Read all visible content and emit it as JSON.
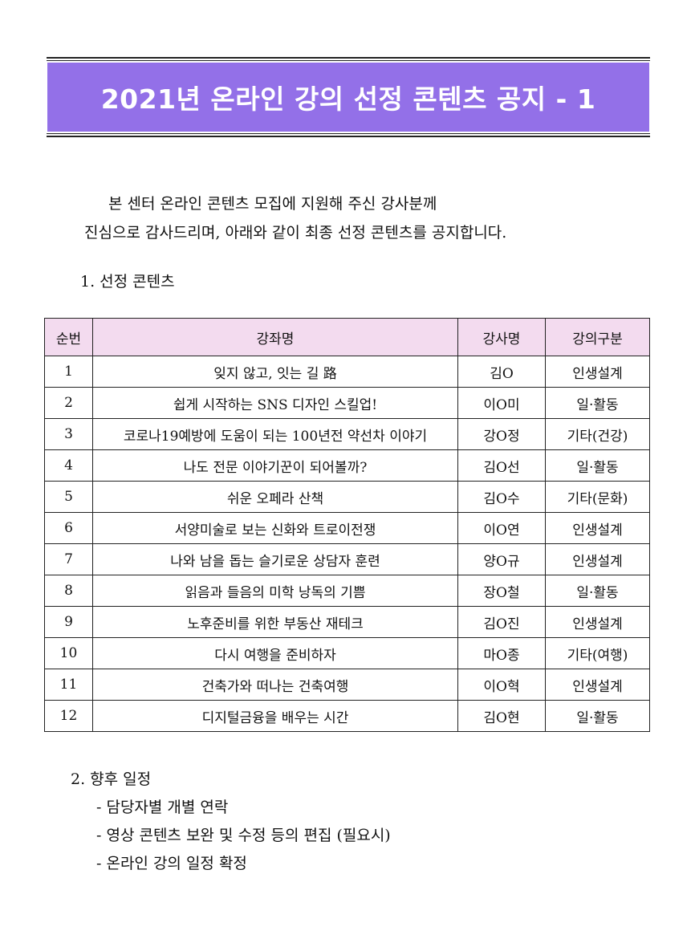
{
  "title": "2021년 온라인 강의 선정 콘텐츠 공지 - 1",
  "intro": {
    "line1": "본 센터 온라인 콘텐츠 모집에 지원해 주신 강사분께",
    "line2": "진심으로 감사드리며, 아래와 같이 최종 선정 콘텐츠를 공지합니다."
  },
  "section1": "1. 선정 콘텐츠",
  "table": {
    "headers": [
      "순번",
      "강좌명",
      "강사명",
      "강의구분"
    ],
    "rows": [
      [
        "1",
        "잊지 않고, 잇는 길 路",
        "김O",
        "인생설계"
      ],
      [
        "2",
        "쉽게 시작하는 SNS 디자인 스킬업!",
        "이O미",
        "일·활동"
      ],
      [
        "3",
        "코로나19예방에 도움이 되는 100년전 약선차 이야기",
        "강O정",
        "기타(건강)"
      ],
      [
        "4",
        "나도 전문 이야기꾼이 되어볼까?",
        "김O선",
        "일·활동"
      ],
      [
        "5",
        "쉬운 오페라 산책",
        "김O수",
        "기타(문화)"
      ],
      [
        "6",
        "서양미술로 보는 신화와 트로이전쟁",
        "이O연",
        "인생설계"
      ],
      [
        "7",
        "나와 남을 돕는 슬기로운 상담자 훈련",
        "양O규",
        "인생설계"
      ],
      [
        "8",
        "읽음과 들음의 미학 낭독의 기쁨",
        "장O철",
        "일·활동"
      ],
      [
        "9",
        "노후준비를 위한 부동산 재테크",
        "김O진",
        "인생설계"
      ],
      [
        "10",
        "다시 여행을 준비하자",
        "마O종",
        "기타(여행)"
      ],
      [
        "11",
        "건축가와 떠나는 건축여행",
        "이O혁",
        "인생설계"
      ],
      [
        "12",
        "디지털금융을 배우는 시간",
        "김O현",
        "일·활동"
      ]
    ]
  },
  "section2": {
    "heading": "2. 향후 일정",
    "items": [
      "- 담당자별 개별 연락",
      "- 영상 콘텐츠 보완 및 수정 등의 편집 (필요시)",
      "- 온라인 강의 일정 확정"
    ]
  },
  "colors": {
    "banner": "#9370e8",
    "header_bg": "#f3dbef"
  }
}
